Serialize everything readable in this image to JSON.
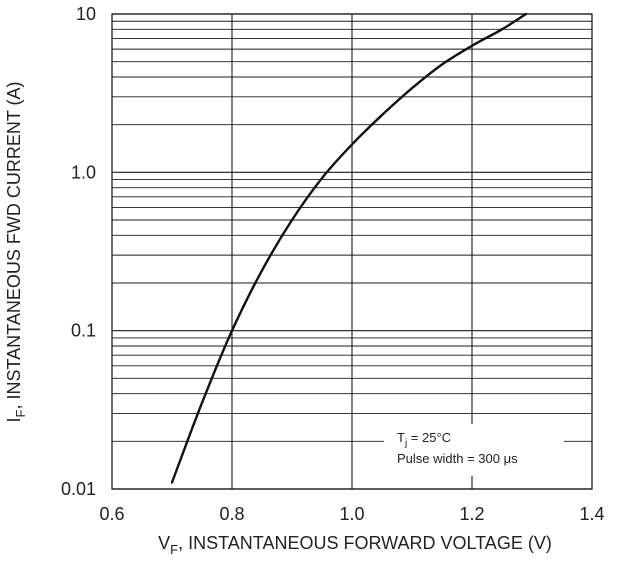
{
  "chart_data": {
    "type": "line",
    "title": "",
    "xlabel": {
      "main": "V",
      "sub": "F",
      "rest": ", INSTANTANEOUS FORWARD VOLTAGE (V)"
    },
    "ylabel": {
      "main": "I",
      "sub": "F",
      "rest": ", INSTANTANEOUS FWD CURRENT (A)"
    },
    "x_scale": "linear",
    "y_scale": "log",
    "xlim": [
      0.6,
      1.4
    ],
    "ylim": [
      0.01,
      10
    ],
    "x_ticks": [
      {
        "value": 0.6,
        "label": "0.6"
      },
      {
        "value": 0.8,
        "label": "0.8"
      },
      {
        "value": 1.0,
        "label": "1.0"
      },
      {
        "value": 1.2,
        "label": "1.2"
      },
      {
        "value": 1.4,
        "label": "1.4"
      }
    ],
    "y_ticks": [
      {
        "value": 0.01,
        "label": "0.01"
      },
      {
        "value": 0.1,
        "label": "0.1"
      },
      {
        "value": 1.0,
        "label": "1.0"
      },
      {
        "value": 10,
        "label": "10"
      }
    ],
    "grid": true,
    "series": [
      {
        "points": [
          {
            "x": 0.7,
            "y": 0.011
          },
          {
            "x": 0.75,
            "y": 0.035
          },
          {
            "x": 0.8,
            "y": 0.1
          },
          {
            "x": 0.85,
            "y": 0.24
          },
          {
            "x": 0.9,
            "y": 0.5
          },
          {
            "x": 0.95,
            "y": 0.92
          },
          {
            "x": 1.0,
            "y": 1.5
          },
          {
            "x": 1.05,
            "y": 2.3
          },
          {
            "x": 1.1,
            "y": 3.4
          },
          {
            "x": 1.15,
            "y": 4.8
          },
          {
            "x": 1.2,
            "y": 6.3
          },
          {
            "x": 1.25,
            "y": 8.0
          },
          {
            "x": 1.29,
            "y": 10.0
          }
        ]
      }
    ],
    "annotations": [
      {
        "main": "T",
        "sub": "j",
        "rest": " = 25°C"
      },
      {
        "text": "Pulse width = 300 μs"
      }
    ],
    "colors": {
      "background": "#ffffff",
      "grid": "#1a1a1a",
      "curve": "#111111",
      "text": "#222222"
    }
  }
}
